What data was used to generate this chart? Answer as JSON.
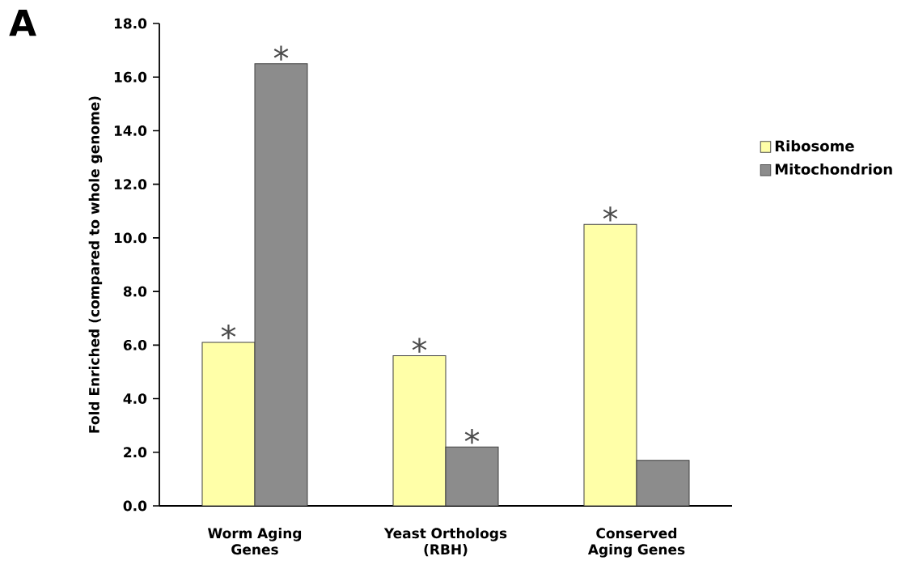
{
  "chart_data": {
    "type": "bar",
    "categories": [
      "Worm Aging Genes",
      "Yeast Orthologs (RBH)",
      "Conserved Aging Genes"
    ],
    "series": [
      {
        "name": "Ribosome",
        "color": "#ffffa8",
        "values": [
          6.1,
          5.6,
          10.5
        ]
      },
      {
        "name": "Mitochondrion",
        "color": "#8c8c8c",
        "values": [
          16.5,
          2.2,
          1.7
        ]
      }
    ],
    "ylabel": "Fold Enriched (compared to whole genome)",
    "ylim": [
      0,
      18
    ],
    "yticks": [
      {
        "value": 0,
        "label": "0.0"
      },
      {
        "value": 2,
        "label": "2.0"
      },
      {
        "value": 4,
        "label": "4.0"
      },
      {
        "value": 6,
        "label": "6.0"
      },
      {
        "value": 8,
        "label": "8.0"
      },
      {
        "value": 10,
        "label": "10.0"
      },
      {
        "value": 12,
        "label": "12.0"
      },
      {
        "value": 14,
        "label": "14.0"
      },
      {
        "value": 16,
        "label": "16.0"
      },
      {
        "value": 18,
        "label": "18.0"
      }
    ],
    "legend": "right",
    "grid": false,
    "annotations": [
      "A",
      {
        "text": "*",
        "x": "Worm Aging Genes",
        "y": 6.1
      },
      {
        "text": "*",
        "x": "Worm Aging Genes",
        "y": 16.5
      },
      {
        "text": "*",
        "x": "Yeast Orthologs (RBH)",
        "y": 5.6
      },
      {
        "text": "*",
        "x": "Yeast Orthologs (RBH)",
        "y": 2.2
      },
      {
        "text": "*",
        "x": "Conserved Aging Genes",
        "y": 10.5
      }
    ]
  }
}
